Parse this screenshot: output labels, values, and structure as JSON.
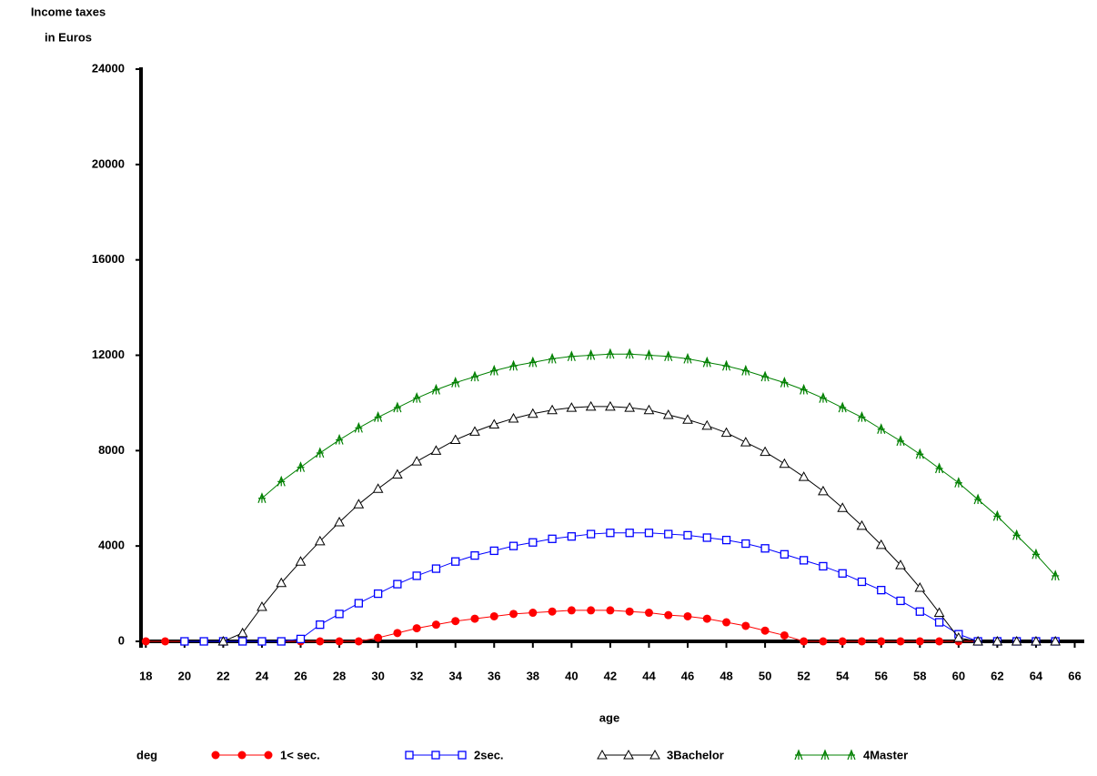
{
  "chart_data": {
    "type": "line",
    "ylabel": [
      "Income taxes",
      "in Euros"
    ],
    "xlabel": "age",
    "legend_title": "deg",
    "legend": "bottom",
    "grid": false,
    "x": [
      18,
      19,
      20,
      21,
      22,
      23,
      24,
      25,
      26,
      27,
      28,
      29,
      30,
      31,
      32,
      33,
      34,
      35,
      36,
      37,
      38,
      39,
      40,
      41,
      42,
      43,
      44,
      45,
      46,
      47,
      48,
      49,
      50,
      51,
      52,
      53,
      54,
      55,
      56,
      57,
      58,
      59,
      60,
      61,
      62,
      63,
      64,
      65
    ],
    "xlim": [
      17.75,
      66.4
    ],
    "xticks": [
      18,
      20,
      22,
      24,
      26,
      28,
      30,
      32,
      34,
      36,
      38,
      40,
      42,
      44,
      46,
      48,
      50,
      52,
      54,
      56,
      58,
      60,
      62,
      64,
      66
    ],
    "ylim": [
      0,
      24000
    ],
    "yticks": [
      0,
      4000,
      8000,
      12000,
      16000,
      20000,
      24000
    ],
    "series": [
      {
        "name": "1< sec.",
        "color": "#ff0000",
        "marker": "circle",
        "values": [
          0,
          0,
          0,
          0,
          0,
          0,
          0,
          0,
          0,
          0,
          0,
          0,
          150,
          350,
          550,
          700,
          850,
          950,
          1050,
          1150,
          1200,
          1250,
          1300,
          1300,
          1300,
          1250,
          1200,
          1100,
          1050,
          950,
          800,
          650,
          450,
          250,
          0,
          0,
          0,
          0,
          0,
          0,
          0,
          0,
          0,
          0,
          0,
          0,
          0,
          0
        ]
      },
      {
        "name": "2sec.",
        "color": "#0000ff",
        "marker": "square",
        "values": [
          null,
          null,
          0,
          0,
          0,
          0,
          0,
          0,
          100,
          700,
          1150,
          1600,
          2000,
          2400,
          2750,
          3050,
          3350,
          3600,
          3800,
          4000,
          4150,
          4300,
          4400,
          4500,
          4550,
          4550,
          4550,
          4500,
          4450,
          4350,
          4250,
          4100,
          3900,
          3650,
          3400,
          3150,
          2850,
          2500,
          2150,
          1700,
          1250,
          800,
          300,
          0,
          0,
          0,
          0,
          0
        ]
      },
      {
        "name": "3Bachelor",
        "color": "#000000",
        "marker": "triangle",
        "values": [
          null,
          null,
          null,
          null,
          0,
          350,
          1450,
          2450,
          3350,
          4200,
          5000,
          5750,
          6400,
          7000,
          7550,
          8000,
          8450,
          8800,
          9100,
          9350,
          9550,
          9700,
          9800,
          9850,
          9850,
          9800,
          9700,
          9500,
          9300,
          9050,
          8750,
          8350,
          7950,
          7450,
          6900,
          6300,
          5600,
          4850,
          4050,
          3200,
          2250,
          1200,
          150,
          0,
          0,
          0,
          0,
          0
        ]
      },
      {
        "name": "4Master",
        "color": "#008000",
        "marker": "star",
        "values": [
          null,
          null,
          null,
          null,
          null,
          null,
          6000,
          6700,
          7300,
          7900,
          8450,
          8950,
          9400,
          9800,
          10200,
          10550,
          10850,
          11100,
          11350,
          11550,
          11700,
          11850,
          11950,
          12000,
          12050,
          12050,
          12000,
          11950,
          11850,
          11700,
          11550,
          11350,
          11100,
          10850,
          10550,
          10200,
          9800,
          9400,
          8900,
          8400,
          7850,
          7250,
          6650,
          5950,
          5250,
          4450,
          3650,
          2750
        ]
      }
    ]
  }
}
